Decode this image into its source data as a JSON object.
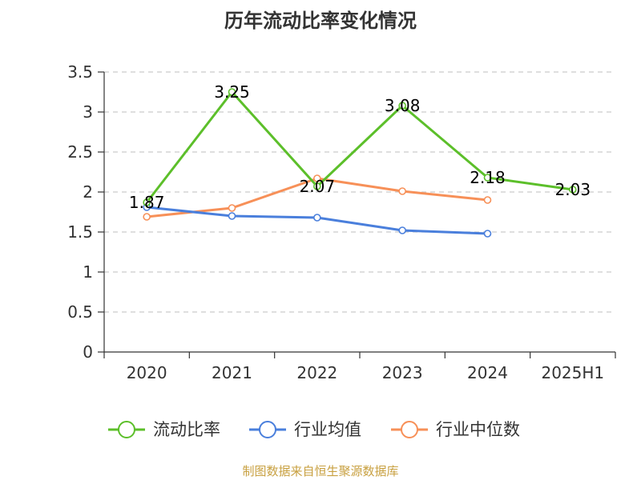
{
  "title": "历年流动比率变化情况",
  "source": "制图数据来自恒生聚源数据库",
  "chart_data": {
    "type": "line",
    "categories": [
      "2020",
      "2021",
      "2022",
      "2023",
      "2024",
      "2025H1"
    ],
    "yticks": [
      "0",
      "0.5",
      "1",
      "1.5",
      "2",
      "2.5",
      "3",
      "3.5"
    ],
    "ylim": [
      0,
      3.5
    ],
    "grid": true,
    "legend_position": "bottom",
    "series": [
      {
        "name": "流动比率",
        "color": "#5cbf2a",
        "labeled": true,
        "values": [
          1.87,
          3.25,
          2.07,
          3.08,
          2.18,
          2.03
        ],
        "labels": [
          "1.87",
          "3.25",
          "2.07",
          "3.08",
          "2.18",
          "2.03"
        ]
      },
      {
        "name": "行业均值",
        "color": "#4a7fdc",
        "labeled": false,
        "values": [
          1.81,
          1.7,
          1.68,
          1.52,
          1.48,
          null
        ]
      },
      {
        "name": "行业中位数",
        "color": "#f79058",
        "labeled": false,
        "values": [
          1.69,
          1.8,
          2.17,
          2.01,
          1.9,
          null
        ]
      }
    ]
  }
}
